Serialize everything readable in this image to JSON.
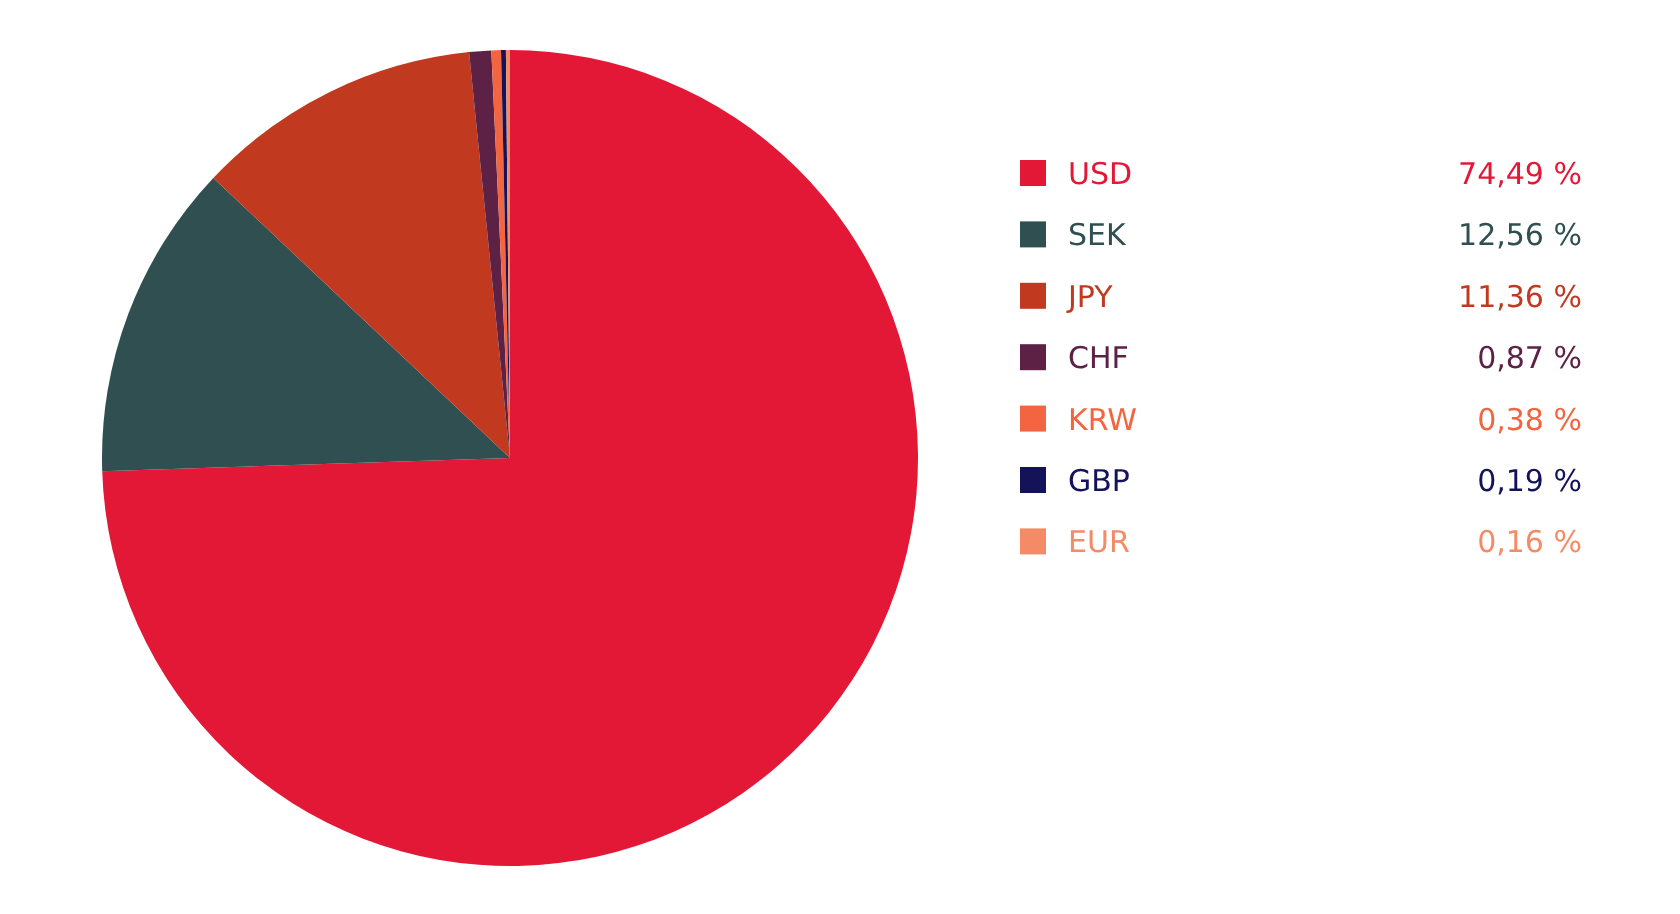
{
  "chart_data": {
    "type": "pie",
    "categories": [
      "USD",
      "SEK",
      "JPY",
      "CHF",
      "KRW",
      "GBP",
      "EUR"
    ],
    "values": [
      74.49,
      12.56,
      11.36,
      0.87,
      0.38,
      0.19,
      0.16
    ],
    "value_labels": [
      "74,49 %",
      "12,56 %",
      "11,36 %",
      "0,87 %",
      "0,38 %",
      "0,19 %",
      "0,16 %"
    ],
    "colors": [
      "#e31837",
      "#2f4f51",
      "#c1391f",
      "#5c2144",
      "#f26540",
      "#14135a",
      "#f58b66"
    ],
    "legend": "right"
  }
}
